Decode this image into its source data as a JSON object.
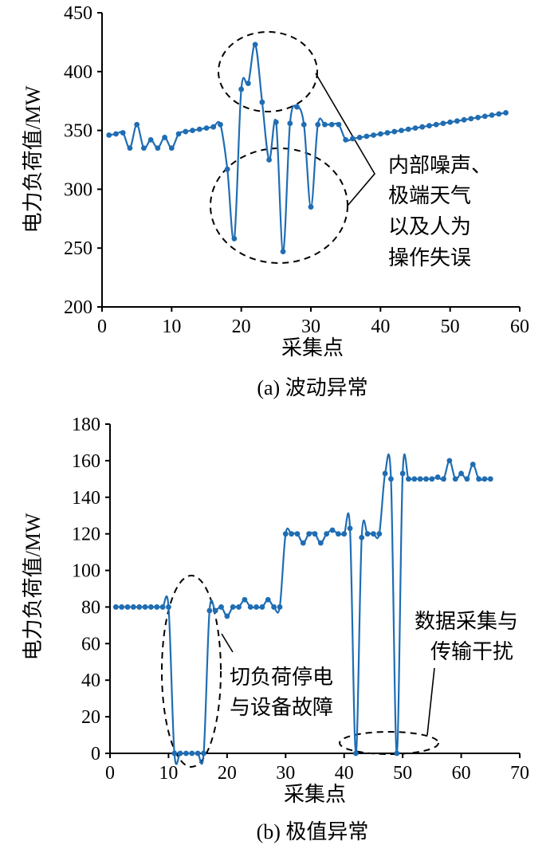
{
  "colors": {
    "series": "#1f6db3",
    "axis": "#000000",
    "background": "#ffffff"
  },
  "chart_data": [
    {
      "type": "line",
      "caption": "(a) 波动异常",
      "xlabel": "采集点",
      "ylabel": "电力负荷值/MW",
      "xlim": [
        0,
        60
      ],
      "ylim": [
        200,
        450
      ],
      "xticks": [
        0,
        10,
        20,
        30,
        40,
        50,
        60
      ],
      "yticks": [
        200,
        250,
        300,
        350,
        400,
        450
      ],
      "grid": false,
      "series": [
        {
          "x": [
            1,
            2,
            3,
            4,
            5,
            6,
            7,
            8,
            9,
            10,
            11,
            12,
            13,
            14,
            15,
            16,
            17,
            18,
            19,
            20,
            21,
            22,
            23,
            24,
            25,
            26,
            27,
            28,
            29,
            30,
            31,
            32,
            33,
            34,
            35,
            36,
            37,
            38,
            39,
            40,
            41,
            42,
            43,
            44,
            45,
            46,
            47,
            48,
            49,
            50,
            51,
            52,
            53,
            54,
            55,
            56,
            57,
            58
          ],
          "y": [
            346,
            347,
            348,
            335,
            355,
            335,
            342,
            335,
            344,
            335,
            347,
            349,
            350,
            351,
            352,
            353,
            355,
            317,
            258,
            385,
            390,
            423,
            374,
            325,
            357,
            247,
            356,
            370,
            355,
            285,
            355,
            355,
            355,
            355,
            342,
            343,
            344,
            345,
            346,
            347,
            348,
            349,
            350,
            351,
            352,
            353,
            354,
            355,
            356,
            357,
            358,
            359,
            360,
            361,
            362,
            363,
            364,
            365
          ]
        }
      ],
      "annotations": [
        {
          "lines": [
            "内部噪声、",
            "极端天气",
            "以及人为",
            "操作失误"
          ]
        }
      ]
    },
    {
      "type": "line",
      "caption": "(b) 极值异常",
      "xlabel": "采集点",
      "ylabel": "电力负荷值/MW",
      "xlim": [
        0,
        70
      ],
      "ylim": [
        0,
        180
      ],
      "xticks": [
        0,
        10,
        20,
        30,
        40,
        50,
        60,
        70
      ],
      "yticks": [
        0,
        20,
        40,
        60,
        80,
        100,
        120,
        140,
        160,
        180
      ],
      "grid": false,
      "series": [
        {
          "x": [
            1,
            2,
            3,
            4,
            5,
            6,
            7,
            8,
            9,
            10,
            11,
            12,
            13,
            14,
            15,
            16,
            17,
            18,
            19,
            20,
            21,
            22,
            23,
            24,
            25,
            26,
            27,
            28,
            29,
            30,
            31,
            32,
            33,
            34,
            35,
            36,
            37,
            38,
            39,
            40,
            41,
            42,
            43,
            44,
            45,
            46,
            47,
            48,
            49,
            50,
            51,
            52,
            53,
            54,
            55,
            56,
            57,
            58,
            59,
            60,
            61,
            62,
            63,
            64,
            65
          ],
          "y": [
            80,
            80,
            80,
            80,
            80,
            80,
            80,
            80,
            80,
            80,
            0,
            0,
            0,
            0,
            0,
            0,
            78,
            78,
            80,
            75,
            80,
            80,
            84,
            80,
            80,
            80,
            84,
            80,
            80,
            120,
            120,
            120,
            115,
            120,
            120,
            115,
            120,
            122,
            120,
            120,
            123,
            0,
            118,
            120,
            120,
            120,
            153,
            150,
            0,
            153,
            150,
            150,
            150,
            150,
            150,
            151,
            150,
            160,
            150,
            153,
            150,
            158,
            150,
            150,
            150
          ]
        }
      ],
      "annotations": [
        {
          "lines": [
            "切负荷停电",
            "与设备故障"
          ]
        },
        {
          "lines": [
            "数据采集与",
            "传输干扰"
          ]
        }
      ]
    }
  ]
}
